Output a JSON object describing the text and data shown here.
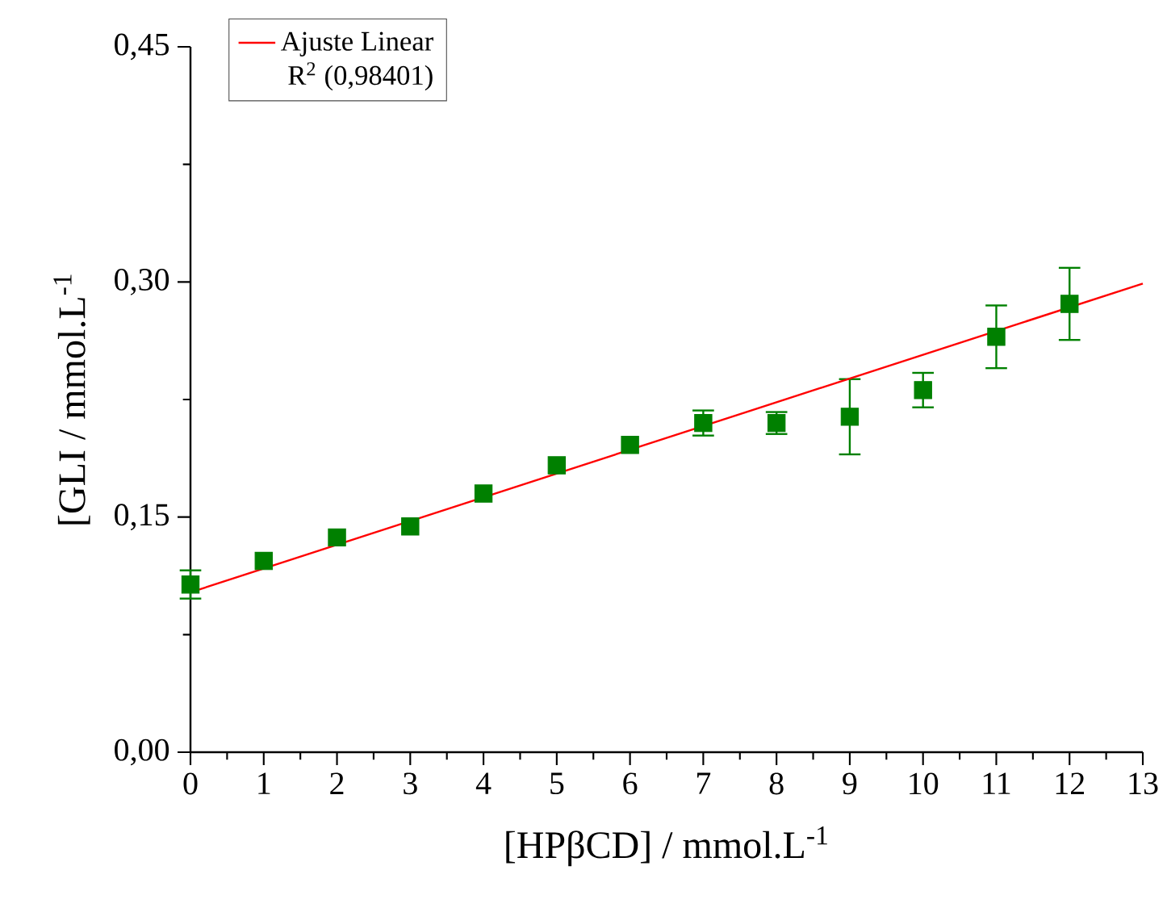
{
  "chart_data": {
    "type": "scatter",
    "xlabel": "[HPβCD] / mmol.L$^{-1}$",
    "ylabel": "[GLI / mmol.L$^{-1}$",
    "x": [
      0,
      1,
      2,
      3,
      4,
      5,
      6,
      7,
      8,
      9,
      10,
      11,
      12
    ],
    "series": [
      {
        "color": "#008000",
        "marker": "square",
        "values": [
          0.107,
          0.122,
          0.137,
          0.144,
          0.165,
          0.183,
          0.196,
          0.21,
          0.21,
          0.214,
          0.231,
          0.265,
          0.286
        ],
        "errors": [
          0.009,
          null,
          null,
          null,
          null,
          null,
          null,
          0.008,
          0.007,
          0.024,
          0.011,
          0.02,
          0.023
        ]
      },
      {
        "type": "line",
        "name": "Ajuste Linear",
        "color": "#ff0000",
        "x": [
          0,
          13
        ],
        "values": [
          0.102,
          0.299
        ]
      }
    ],
    "annotations": [
      "R$^{2}$ (0,98401)"
    ],
    "xlim": [
      0,
      13
    ],
    "ylim": [
      0,
      0.45
    ],
    "xticks": [
      0,
      1,
      2,
      3,
      4,
      5,
      6,
      7,
      8,
      9,
      10,
      11,
      12,
      13
    ],
    "yticks": [
      {
        "value": 0,
        "label": "0,00"
      },
      {
        "value": 0.15,
        "label": "0,15"
      },
      {
        "value": 0.3,
        "label": "0,30"
      },
      {
        "value": 0.45,
        "label": "0,45"
      }
    ],
    "legend": "top left",
    "grid": false
  }
}
